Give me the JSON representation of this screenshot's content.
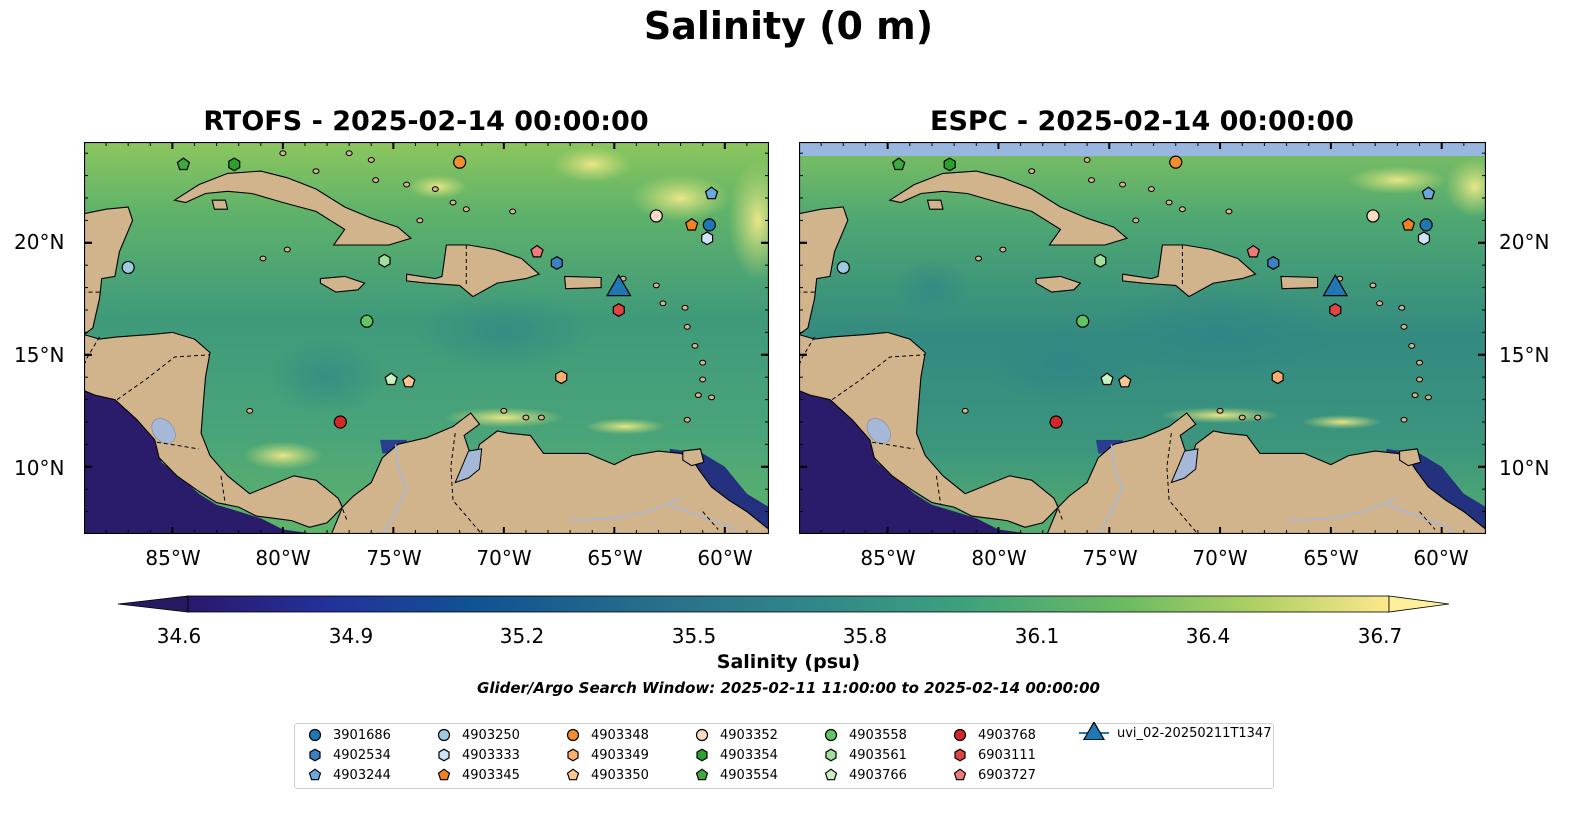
{
  "figure_title": "Salinity (0 m)",
  "panels": [
    {
      "title": "RTOFS - 2025-02-14 00:00:00",
      "model": "RTOFS"
    },
    {
      "title": "ESPC - 2025-02-14 00:00:00",
      "model": "ESPC"
    }
  ],
  "map_extent": {
    "lon_min": -89,
    "lon_max": -58,
    "lat_min": 7,
    "lat_max": 24.5
  },
  "axes": {
    "lon_ticks": [
      "85°W",
      "80°W",
      "75°W",
      "70°W",
      "65°W",
      "60°W"
    ],
    "lat_ticks": [
      "20°N",
      "15°N",
      "10°N"
    ]
  },
  "colorbar": {
    "label": "Salinity (psu)",
    "min": 34.6,
    "max": 36.7,
    "extend": "both",
    "cmap": "haline",
    "ticks": [
      "34.6",
      "34.9",
      "35.2",
      "35.5",
      "35.8",
      "36.1",
      "36.4",
      "36.7"
    ]
  },
  "search_window": "Glider/Argo Search Window: 2025-02-11 11:00:00 to 2025-02-14 00:00:00",
  "colors": {
    "land": "#d2b48c",
    "inland_water": "#a5b8d8",
    "no_data": "#97b6e0"
  },
  "platforms": [
    {
      "id": "3901686",
      "marker": "circle",
      "color": "#1f77b4",
      "lon": -60.7,
      "lat": 20.8
    },
    {
      "id": "4902534",
      "marker": "hexagon",
      "color": "#3b7fc4",
      "lon": -67.6,
      "lat": 19.1
    },
    {
      "id": "4903244",
      "marker": "pentagon",
      "color": "#6aa8e0",
      "lon": -60.6,
      "lat": 22.2
    },
    {
      "id": "4903250",
      "marker": "circle",
      "color": "#9ecae1",
      "lon": -87.0,
      "lat": 18.9
    },
    {
      "id": "4903333",
      "marker": "hexagon",
      "color": "#cce4f6",
      "lon": -60.8,
      "lat": 20.2
    },
    {
      "id": "4903345",
      "marker": "pentagon",
      "color": "#f4801e",
      "lon": -61.5,
      "lat": 20.8
    },
    {
      "id": "4903348",
      "marker": "circle",
      "color": "#f28e2c",
      "lon": -72.0,
      "lat": 23.6
    },
    {
      "id": "4903349",
      "marker": "hexagon",
      "color": "#fdae6b",
      "lon": -67.4,
      "lat": 14.0
    },
    {
      "id": "4903350",
      "marker": "pentagon",
      "color": "#fdc591",
      "lon": -74.3,
      "lat": 13.8
    },
    {
      "id": "4903352",
      "marker": "circle",
      "color": "#fddbc0",
      "lon": -63.1,
      "lat": 21.2
    },
    {
      "id": "4903354",
      "marker": "hexagon",
      "color": "#2ca02c",
      "lon": -82.2,
      "lat": 23.5
    },
    {
      "id": "4903554",
      "marker": "pentagon",
      "color": "#3eaa3e",
      "lon": -84.5,
      "lat": 23.5
    },
    {
      "id": "4903558",
      "marker": "circle",
      "color": "#62c462",
      "lon": -76.2,
      "lat": 16.5
    },
    {
      "id": "4903561",
      "marker": "hexagon",
      "color": "#a1e09a",
      "lon": -75.4,
      "lat": 19.2
    },
    {
      "id": "4903766",
      "marker": "pentagon",
      "color": "#c9f2c0",
      "lon": -75.1,
      "lat": 13.9
    },
    {
      "id": "4903768",
      "marker": "circle",
      "color": "#d62728",
      "lon": -77.4,
      "lat": 12.0
    },
    {
      "id": "6903111",
      "marker": "hexagon",
      "color": "#e04444",
      "lon": -64.8,
      "lat": 17.0
    },
    {
      "id": "6903727",
      "marker": "pentagon",
      "color": "#f07a7a",
      "lon": -68.5,
      "lat": 19.6
    },
    {
      "id": "uvi_02-20250211T1347",
      "marker": "triangle",
      "color": "#1f77b4",
      "lon": -64.8,
      "lat": 18.1
    }
  ]
}
